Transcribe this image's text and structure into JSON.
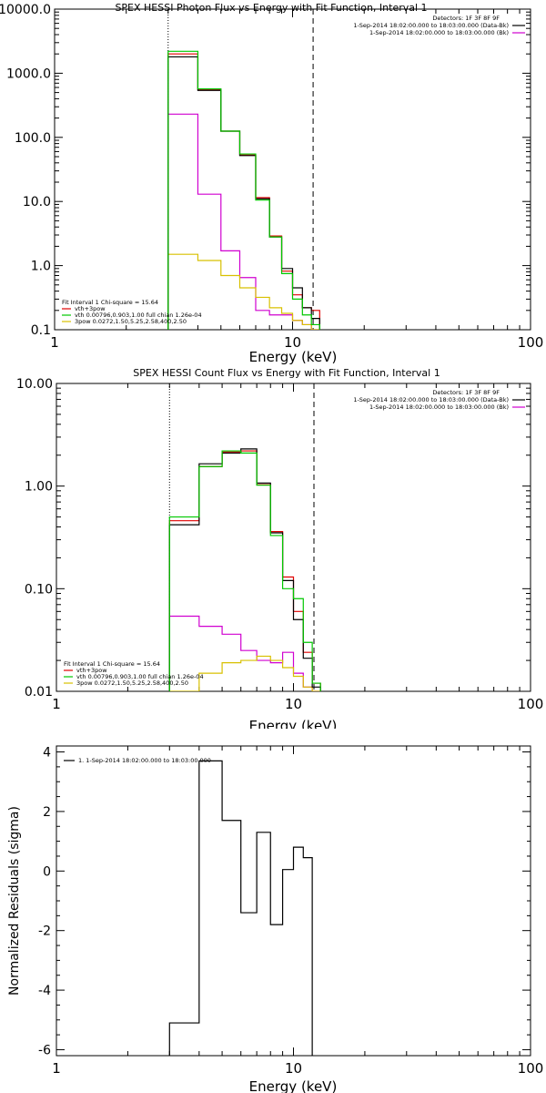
{
  "colors": {
    "black": "#000000",
    "red": "#e00000",
    "green": "#00c800",
    "magenta": "#d000d0",
    "yellow": "#d8c000"
  },
  "chart_data": [
    {
      "type": "line",
      "title": "SPEX HESSI Photon Flux vs Energy with Fit Function, Interval 1",
      "xlabel": "Energy (keV)",
      "ylabel": "",
      "xscale": "log",
      "yscale": "log",
      "xlim": [
        1,
        100
      ],
      "ylim": [
        0.1,
        10000
      ],
      "x_tick_labels": [
        "1",
        "10",
        "100"
      ],
      "y_tick_labels": [
        "0.1",
        "1.0",
        "10.0",
        "100.0",
        "1000.0",
        "10000.0"
      ],
      "vlines": [
        {
          "x": 3,
          "style": "dotted"
        },
        {
          "x": 12.2,
          "style": "dashed"
        }
      ],
      "legend_top": {
        "placement": "top-right",
        "header": "Detectors: 1F 3F 8F 9F",
        "entries": [
          {
            "label": "1-Sep-2014 18:02:00.000 to 18:03:00.000 (Data-Bk)",
            "color": "#000000"
          },
          {
            "label": "1-Sep-2014 18:02:00.000 to 18:03:00.000 (Bk)",
            "color": "#d000d0"
          }
        ]
      },
      "legend_bottom": {
        "placement": "bottom-left",
        "header": "Fit Interval 1    Chi-square = 15.64",
        "entries": [
          {
            "label": "vth+3pow",
            "color": "#e00000"
          },
          {
            "label": "vth 0.00796,0.903,1.00  full chian 1.26e-04",
            "color": "#00c800"
          },
          {
            "label": "3pow 0.0272,1.50,5.25,2.58,400,2.50",
            "color": "#d8c000"
          }
        ]
      },
      "bin_edges": [
        3,
        4,
        5,
        6,
        7,
        8,
        9,
        10,
        11,
        12,
        13
      ],
      "series": [
        {
          "name": "Data-Bk",
          "color": "#000000",
          "values": [
            1800,
            540,
            125,
            52,
            11,
            2.8,
            0.9,
            0.45,
            0.22,
            0.15
          ]
        },
        {
          "name": "vth+3pow",
          "color": "#e00000",
          "values": [
            2000,
            560,
            125,
            53,
            11.5,
            2.9,
            0.82,
            0.35,
            0.22,
            0.2
          ]
        },
        {
          "name": "vth",
          "color": "#00c800",
          "values": [
            2200,
            570,
            125,
            55,
            10.5,
            2.8,
            0.75,
            0.3,
            0.17,
            0.12
          ]
        },
        {
          "name": "Bk",
          "color": "#d000d0",
          "values": [
            230,
            13,
            1.7,
            0.65,
            0.2,
            0.17,
            0.17,
            0.14,
            0.12,
            0.1
          ]
        },
        {
          "name": "3pow",
          "color": "#d8c000",
          "values": [
            1.5,
            1.2,
            0.7,
            0.45,
            0.32,
            0.22,
            0.18,
            0.14,
            0.12,
            0.1
          ]
        }
      ]
    },
    {
      "type": "line",
      "title": "SPEX HESSI Count Flux vs Energy with Fit Function, Interval 1",
      "xlabel": "Energy (keV)",
      "ylabel": "",
      "xscale": "log",
      "yscale": "log",
      "xlim": [
        1,
        100
      ],
      "ylim": [
        0.01,
        10
      ],
      "x_tick_labels": [
        "1",
        "10",
        "100"
      ],
      "y_tick_labels": [
        "0.01",
        "0.10",
        "1.00",
        "10.00"
      ],
      "vlines": [
        {
          "x": 3,
          "style": "dotted"
        },
        {
          "x": 12.2,
          "style": "dashed"
        }
      ],
      "legend_top": {
        "placement": "top-right",
        "header": "Detectors: 1F 3F 8F 9F",
        "entries": [
          {
            "label": "1-Sep-2014 18:02:00.000 to 18:03:00.000 (Data-Bk)",
            "color": "#000000"
          },
          {
            "label": "1-Sep-2014 18:02:00.000 to 18:03:00.000 (Bk)",
            "color": "#d000d0"
          }
        ]
      },
      "legend_bottom": {
        "placement": "bottom-left",
        "header": "Fit Interval 1    Chi-square = 15.64",
        "entries": [
          {
            "label": "vth+3pow",
            "color": "#e00000"
          },
          {
            "label": "vth 0.00796,0.903,1.00  full chian 1.26e-04",
            "color": "#00c800"
          },
          {
            "label": "3pow 0.0272,1.50,5.25,2.58,400,2.50",
            "color": "#d8c000"
          }
        ]
      },
      "bin_edges": [
        3,
        4,
        5,
        6,
        7,
        8,
        9,
        10,
        11,
        12,
        13
      ],
      "series": [
        {
          "name": "Data-Bk",
          "color": "#000000",
          "values": [
            0.42,
            1.65,
            2.1,
            2.3,
            1.07,
            0.35,
            0.12,
            0.05,
            0.021,
            0.011
          ]
        },
        {
          "name": "vth+3pow",
          "color": "#e00000",
          "values": [
            0.46,
            1.55,
            2.15,
            2.2,
            1.03,
            0.36,
            0.13,
            0.06,
            0.024,
            0.012
          ]
        },
        {
          "name": "vth",
          "color": "#00c800",
          "values": [
            0.5,
            1.55,
            2.2,
            2.1,
            1.02,
            0.33,
            0.1,
            0.08,
            0.03,
            0.012
          ]
        },
        {
          "name": "Bk",
          "color": "#d000d0",
          "values": [
            0.054,
            0.043,
            0.036,
            0.025,
            0.02,
            0.019,
            0.024,
            0.015,
            0.011,
            0.01
          ]
        },
        {
          "name": "3pow",
          "color": "#d8c000",
          "values": [
            0.01,
            0.015,
            0.019,
            0.02,
            0.022,
            0.02,
            0.017,
            0.014,
            0.011,
            0.01
          ]
        }
      ]
    },
    {
      "type": "line",
      "title": "",
      "xlabel": "Energy (keV)",
      "ylabel": "Normalized Residuals (sigma)",
      "xscale": "log",
      "yscale": "linear",
      "xlim": [
        1,
        100
      ],
      "ylim": [
        -6.2,
        4.2
      ],
      "x_tick_labels": [
        "1",
        "10",
        "100"
      ],
      "y_tick_labels": [
        "-6",
        "-4",
        "-2",
        "0",
        "2",
        "4"
      ],
      "y_ticks": [
        -6,
        -4,
        -2,
        0,
        2,
        4
      ],
      "legend_top": {
        "placement": "top-left",
        "header": "",
        "entries": [
          {
            "label": "1. 1-Sep-2014 18:02:00.000 to 18:03:00.000",
            "color": "#000000"
          }
        ]
      },
      "bin_edges": [
        3,
        4,
        5,
        6,
        7,
        8,
        9,
        10,
        11,
        12
      ],
      "series": [
        {
          "name": "",
          "color": "#000000",
          "values": [
            -5.1,
            3.7,
            1.7,
            -1.4,
            1.3,
            -1.8,
            0.05,
            0.8,
            0.45
          ]
        }
      ]
    }
  ]
}
